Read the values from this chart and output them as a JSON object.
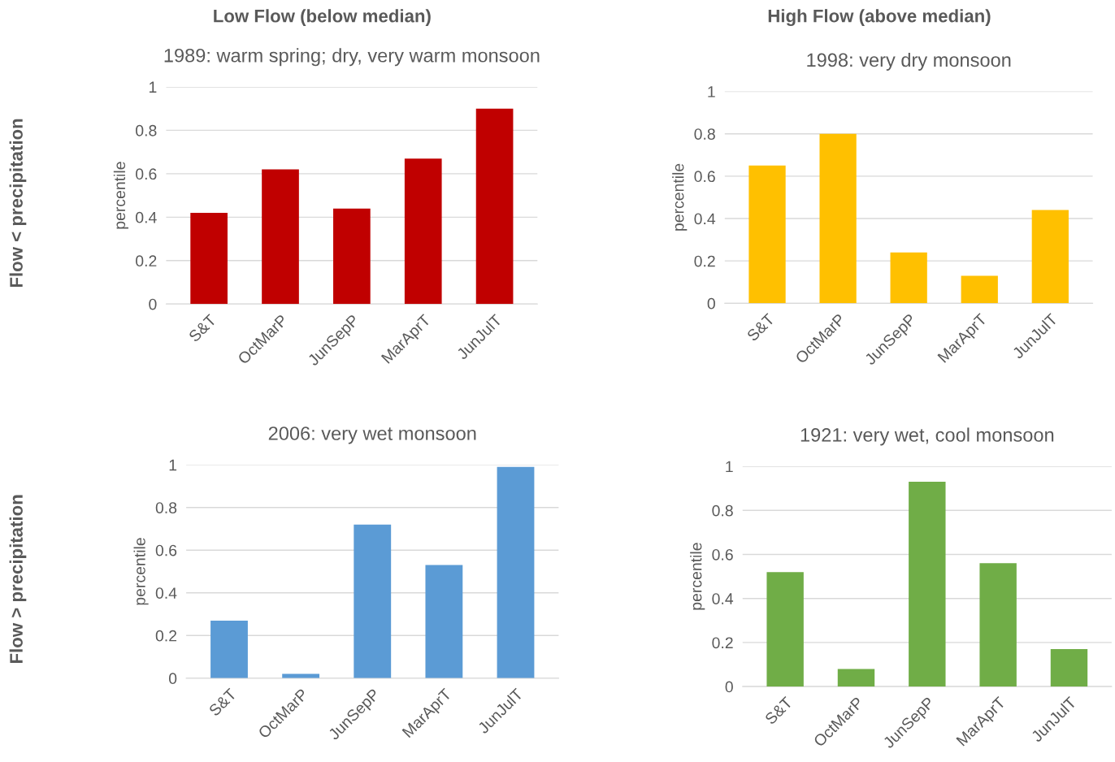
{
  "chart_data": [
    {
      "type": "bar",
      "title": "1989: warm spring; dry, very warm monsoon",
      "ylabel": "percentile",
      "annotations": [
        "Low Flow (below median)",
        "Flow < precipitation"
      ],
      "categories": [
        "S&T",
        "OctMarP",
        "JunSepP",
        "MarAprT",
        "JunJulT"
      ],
      "values": [
        0.42,
        0.62,
        0.44,
        0.67,
        0.9
      ],
      "color": "#c00000",
      "ylim": [
        0,
        1
      ],
      "yticks": [
        0,
        0.2,
        0.4,
        0.6,
        0.8,
        1
      ],
      "grid": "y"
    },
    {
      "type": "bar",
      "title": "1998: very dry monsoon",
      "ylabel": "percentile",
      "annotations": [
        "High Flow (above median)"
      ],
      "categories": [
        "S&T",
        "OctMarP",
        "JunSepP",
        "MarAprT",
        "JunJulT"
      ],
      "values": [
        0.65,
        0.8,
        0.24,
        0.13,
        0.44
      ],
      "color": "#ffc000",
      "ylim": [
        0,
        1
      ],
      "yticks": [
        0,
        0.2,
        0.4,
        0.6,
        0.8,
        1
      ],
      "grid": "y"
    },
    {
      "type": "bar",
      "title": "2006: very wet monsoon",
      "ylabel": "percentile",
      "annotations": [
        "Flow > precipitation"
      ],
      "categories": [
        "S&T",
        "OctMarP",
        "JunSepP",
        "MarAprT",
        "JunJulT"
      ],
      "values": [
        0.27,
        0.02,
        0.72,
        0.53,
        0.99
      ],
      "color": "#5b9bd5",
      "ylim": [
        0,
        1
      ],
      "yticks": [
        0,
        0.2,
        0.4,
        0.6,
        0.8,
        1
      ],
      "grid": "y"
    },
    {
      "type": "bar",
      "title": "1921: very wet, cool monsoon",
      "ylabel": "percentile",
      "categories": [
        "S&T",
        "OctMarP",
        "JunSepP",
        "MarAprT",
        "JunJulT"
      ],
      "values": [
        0.52,
        0.08,
        0.93,
        0.56,
        0.17
      ],
      "color": "#70ad47",
      "ylim": [
        0,
        1
      ],
      "yticks": [
        0,
        0.2,
        0.4,
        0.6,
        0.8,
        1
      ],
      "grid": "y"
    }
  ]
}
